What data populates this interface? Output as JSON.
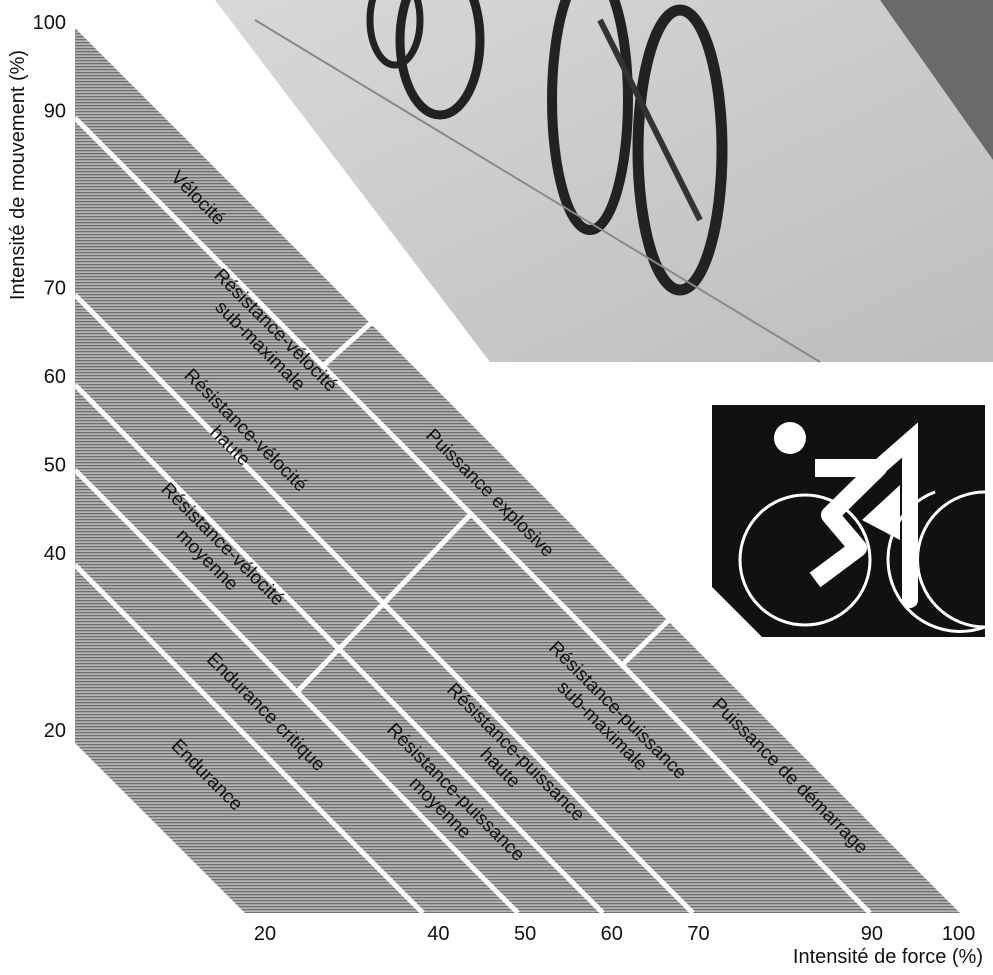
{
  "x_axis": {
    "title": "Intensité de force (%)",
    "ticks": [
      20,
      40,
      50,
      60,
      70,
      90,
      100
    ]
  },
  "y_axis": {
    "title": "Intensité de mouvement (%)",
    "ticks": [
      100,
      90,
      70,
      60,
      50,
      40,
      20
    ]
  },
  "zones": [
    {
      "lines": [
        "Vélocité"
      ]
    },
    {
      "lines": [
        "Résistance-vélocité",
        "sub-maximale"
      ]
    },
    {
      "lines": [
        "Résistance-vélocité",
        "haute"
      ]
    },
    {
      "lines": [
        "Résistance-vélocité",
        "moyenne"
      ]
    },
    {
      "lines": [
        "Endurance critique"
      ]
    },
    {
      "lines": [
        "Endurance"
      ]
    },
    {
      "lines": [
        "Puissance explosive"
      ]
    },
    {
      "lines": [
        "Résistance-puissance",
        "sub-maximale"
      ]
    },
    {
      "lines": [
        "Résistance-puissance",
        "haute"
      ]
    },
    {
      "lines": [
        "Résistance-puissance",
        "moyenne"
      ]
    },
    {
      "lines": [
        "Puissance de démarrage"
      ]
    }
  ]
}
